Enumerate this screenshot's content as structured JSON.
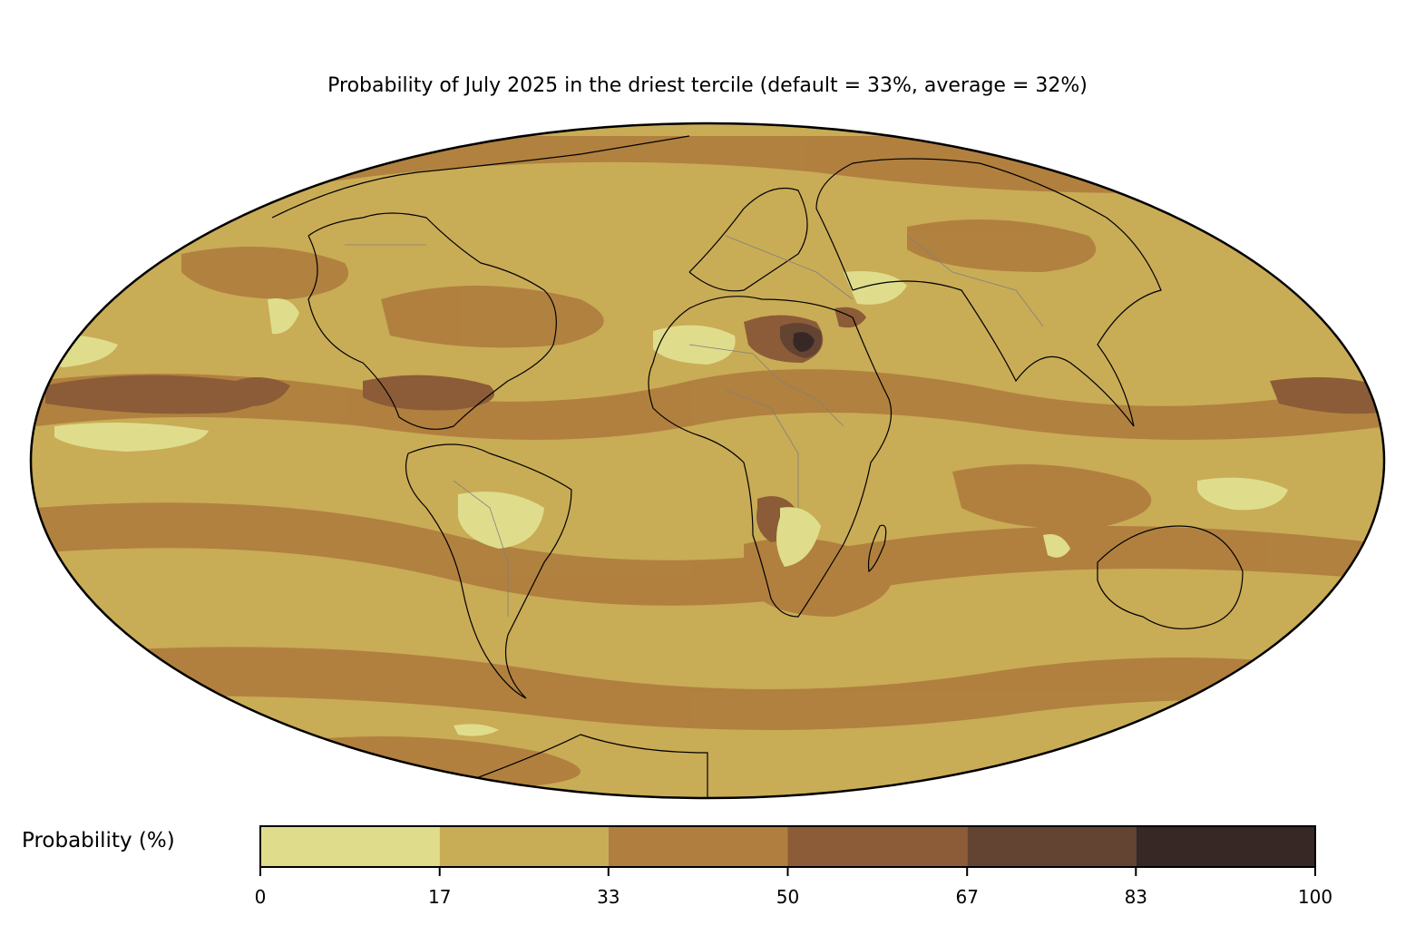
{
  "title": "Probability of July 2025 in the driest tercile (default = 33%, average = 32%)",
  "projection": "Mollweide",
  "colorbar": {
    "label": "Probability (%)",
    "ticks": [
      "0",
      "17",
      "33",
      "50",
      "67",
      "83",
      "100"
    ],
    "colors": [
      "#dfdd8c",
      "#c9ac56",
      "#b07e3e",
      "#8b5c37",
      "#634332",
      "#372826"
    ]
  },
  "chart_data": {
    "type": "heatmap",
    "title": "Probability of July 2025 in the driest tercile (default = 33%, average = 32%)",
    "colorbar_label": "Probability (%)",
    "levels": [
      0,
      17,
      33,
      50,
      67,
      83,
      100
    ],
    "default_value": 33,
    "average_value": 32
  }
}
